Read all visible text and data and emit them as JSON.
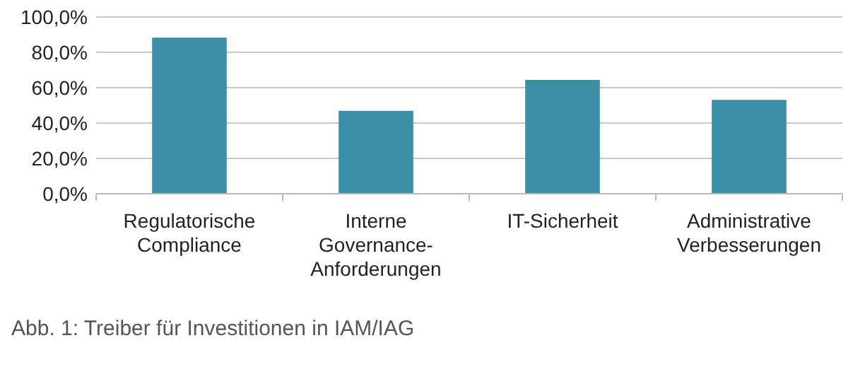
{
  "chart_data": {
    "type": "bar",
    "categories": [
      "Regulatorische Compliance",
      "Interne Governance-Anforderungen",
      "IT-Sicherheit",
      "Administrative Verbesserungen"
    ],
    "values": [
      88.3,
      46.9,
      64.4,
      53.1
    ],
    "color": "#3a8fa6",
    "ylim": [
      0,
      100
    ],
    "yticks": [
      {
        "value": 0,
        "label": "0,0%"
      },
      {
        "value": 20,
        "label": "20,0%"
      },
      {
        "value": 40,
        "label": "40,0%"
      },
      {
        "value": 60,
        "label": "60,0%"
      },
      {
        "value": 80,
        "label": "80,0%"
      },
      {
        "value": 100,
        "label": "100,0%"
      }
    ],
    "grid": "y",
    "annotations": [
      "Abb. 1: Treiber für Investitionen in IAM/IAG"
    ]
  }
}
